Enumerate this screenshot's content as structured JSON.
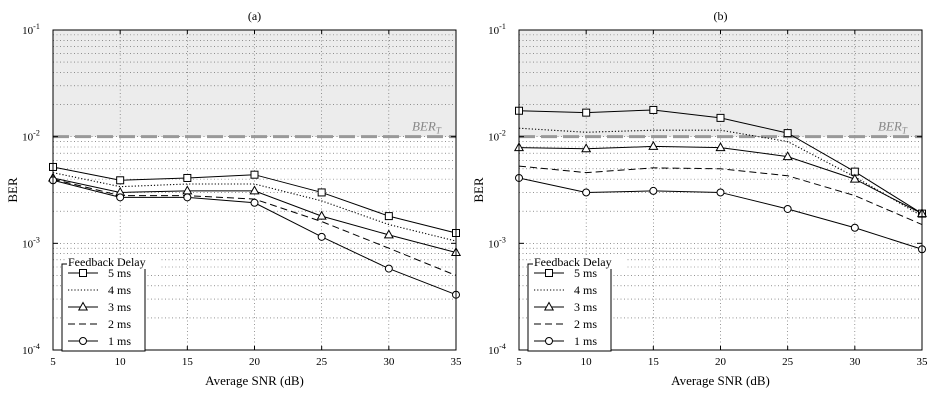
{
  "chart_data": [
    {
      "type": "line",
      "title": "(a)",
      "xlabel": "Average SNR (dB)",
      "ylabel": "BER",
      "xlim": [
        5,
        35
      ],
      "ylim": [
        0.0001,
        0.1
      ],
      "yscale": "log",
      "grid": true,
      "x": [
        5,
        10,
        15,
        20,
        25,
        30,
        35
      ],
      "xticks": [
        "5",
        "10",
        "15",
        "20",
        "25",
        "30",
        "35"
      ],
      "yticks": [
        {
          "v": 0.0001,
          "base": "10",
          "exp": "-4"
        },
        {
          "v": 0.001,
          "base": "10",
          "exp": "-3"
        },
        {
          "v": 0.01,
          "base": "10",
          "exp": "-2"
        },
        {
          "v": 0.1,
          "base": "10",
          "exp": "-1"
        }
      ],
      "threshold": {
        "value": 0.01,
        "label": "BER",
        "label_sub": "T"
      },
      "legend_title": "Feedback Delay",
      "legend_position": "lower-left",
      "series": [
        {
          "name": "5 ms",
          "style": "solid",
          "marker": "square",
          "values": [
            0.0052,
            0.0039,
            0.0041,
            0.0044,
            0.003,
            0.0018,
            0.00125
          ]
        },
        {
          "name": "4 ms",
          "style": "dotted",
          "marker": "none",
          "values": [
            0.0046,
            0.0034,
            0.0036,
            0.0036,
            0.0025,
            0.0015,
            0.00105
          ]
        },
        {
          "name": "3 ms",
          "style": "solid",
          "marker": "triangle",
          "values": [
            0.0041,
            0.003,
            0.0031,
            0.0031,
            0.0018,
            0.0012,
            0.00082
          ]
        },
        {
          "name": "2 ms",
          "style": "dashed",
          "marker": "none",
          "values": [
            0.004,
            0.0028,
            0.0028,
            0.0026,
            0.0016,
            0.0009,
            0.0005
          ]
        },
        {
          "name": "1 ms",
          "style": "solid",
          "marker": "circle",
          "values": [
            0.0039,
            0.0027,
            0.0027,
            0.0024,
            0.00115,
            0.00058,
            0.00033
          ]
        }
      ]
    },
    {
      "type": "line",
      "title": "(b)",
      "xlabel": "Average SNR (dB)",
      "ylabel": "BER",
      "xlim": [
        5,
        35
      ],
      "ylim": [
        0.0001,
        0.1
      ],
      "yscale": "log",
      "grid": true,
      "x": [
        5,
        10,
        15,
        20,
        25,
        30,
        35
      ],
      "xticks": [
        "5",
        "10",
        "15",
        "20",
        "25",
        "30",
        "35"
      ],
      "yticks": [
        {
          "v": 0.0001,
          "base": "10",
          "exp": "-4"
        },
        {
          "v": 0.001,
          "base": "10",
          "exp": "-3"
        },
        {
          "v": 0.01,
          "base": "10",
          "exp": "-2"
        },
        {
          "v": 0.1,
          "base": "10",
          "exp": "-1"
        }
      ],
      "threshold": {
        "value": 0.01,
        "label": "BER",
        "label_sub": "T"
      },
      "legend_title": "Feedback Delay",
      "legend_position": "lower-left",
      "series": [
        {
          "name": "5 ms",
          "style": "solid",
          "marker": "square",
          "values": [
            0.0175,
            0.0168,
            0.0178,
            0.015,
            0.0108,
            0.0047,
            0.0019
          ]
        },
        {
          "name": "4 ms",
          "style": "dotted",
          "marker": "none",
          "values": [
            0.012,
            0.011,
            0.0115,
            0.0115,
            0.009,
            0.0042,
            0.0018
          ]
        },
        {
          "name": "3 ms",
          "style": "solid",
          "marker": "triangle",
          "values": [
            0.0079,
            0.0077,
            0.0081,
            0.0079,
            0.0065,
            0.004,
            0.0019
          ]
        },
        {
          "name": "2 ms",
          "style": "dashed",
          "marker": "none",
          "values": [
            0.0053,
            0.0046,
            0.0051,
            0.005,
            0.0043,
            0.0028,
            0.0015
          ]
        },
        {
          "name": "1 ms",
          "style": "solid",
          "marker": "circle",
          "values": [
            0.0041,
            0.003,
            0.0031,
            0.003,
            0.0021,
            0.0014,
            0.00088
          ]
        }
      ]
    }
  ]
}
